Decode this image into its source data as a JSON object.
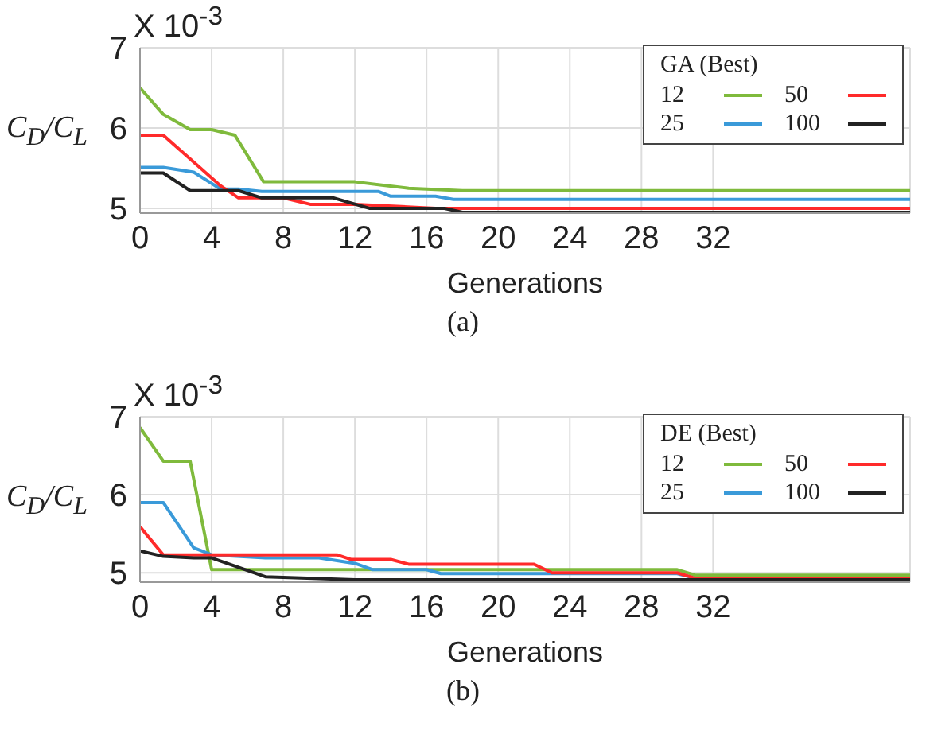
{
  "chart_data": [
    {
      "type": "line",
      "title": "(a)",
      "xlabel": "Generations",
      "ylabel": "C$_{D}$/C$_{L}$",
      "legend_title": "GA (Best)",
      "annotations": [
        "X 10$^{-3}$"
      ],
      "xlim": [
        0,
        43
      ],
      "xticks": [
        0,
        4,
        8,
        12,
        16,
        20,
        24,
        28,
        32
      ],
      "ylim": [
        4.94,
        7
      ],
      "yticks": [
        5,
        6,
        7
      ],
      "grid": true,
      "legend": "top right",
      "marker": "none",
      "line_style": "solid",
      "series": [
        {
          "name": "12",
          "color": "#7fba3c",
          "x": [
            0,
            1.3,
            2.8,
            4,
            5.3,
            6.9,
            12,
            13.5,
            15,
            18,
            43
          ],
          "values": [
            6.5,
            6.17,
            5.98,
            5.98,
            5.91,
            5.33,
            5.33,
            5.29,
            5.25,
            5.22,
            5.22
          ]
        },
        {
          "name": "25",
          "color": "#3a9ad9",
          "x": [
            0,
            1.3,
            3,
            4.5,
            5.5,
            6.8,
            13.3,
            14,
            16.5,
            17.5,
            43
          ],
          "values": [
            5.51,
            5.51,
            5.45,
            5.24,
            5.24,
            5.21,
            5.21,
            5.15,
            5.15,
            5.11,
            5.11
          ]
        },
        {
          "name": "50",
          "color": "#ff2a2a",
          "x": [
            0,
            1.3,
            4.5,
            5.5,
            8,
            9.5,
            12,
            16.5,
            43
          ],
          "values": [
            5.91,
            5.91,
            5.28,
            5.13,
            5.13,
            5.05,
            5.05,
            5.0,
            5.0
          ]
        },
        {
          "name": "100",
          "color": "#222222",
          "x": [
            0,
            1.3,
            2.8,
            5.5,
            6.8,
            10.8,
            12.8,
            17,
            18,
            43
          ],
          "values": [
            5.44,
            5.44,
            5.22,
            5.22,
            5.13,
            5.13,
            5.0,
            5.0,
            4.95,
            4.95
          ]
        }
      ]
    },
    {
      "type": "line",
      "title": "(b)",
      "xlabel": "Generations",
      "ylabel": "C$_{D}$/C$_{L}$",
      "legend_title": "DE (Best)",
      "annotations": [
        "X 10$^{-3}$"
      ],
      "xlim": [
        0,
        43
      ],
      "xticks": [
        0,
        4,
        8,
        12,
        16,
        20,
        24,
        28,
        32
      ],
      "ylim": [
        4.88,
        7
      ],
      "yticks": [
        5,
        6,
        7
      ],
      "grid": true,
      "legend": "top right",
      "marker": "none",
      "line_style": "solid",
      "series": [
        {
          "name": "12",
          "color": "#7fba3c",
          "x": [
            0,
            1.3,
            2.8,
            4,
            30,
            31,
            43
          ],
          "values": [
            6.86,
            6.43,
            6.43,
            5.04,
            5.04,
            4.97,
            4.97
          ]
        },
        {
          "name": "25",
          "color": "#3a9ad9",
          "x": [
            0,
            1.3,
            3,
            4,
            7,
            10,
            12,
            13,
            16,
            16.8,
            30,
            31,
            43
          ],
          "values": [
            5.9,
            5.9,
            5.32,
            5.23,
            5.19,
            5.19,
            5.12,
            5.04,
            5.04,
            4.99,
            4.99,
            4.93,
            4.93
          ]
        },
        {
          "name": "50",
          "color": "#ff2a2a",
          "x": [
            0,
            1.3,
            11,
            11.8,
            14,
            15,
            22,
            23,
            30,
            31,
            43
          ],
          "values": [
            5.59,
            5.23,
            5.23,
            5.17,
            5.17,
            5.11,
            5.11,
            5.0,
            5.0,
            4.93,
            4.93
          ]
        },
        {
          "name": "100",
          "color": "#222222",
          "x": [
            0,
            1.3,
            3,
            4,
            7,
            12,
            43
          ],
          "values": [
            5.28,
            5.21,
            5.19,
            5.19,
            4.95,
            4.91,
            4.91
          ]
        }
      ]
    }
  ]
}
